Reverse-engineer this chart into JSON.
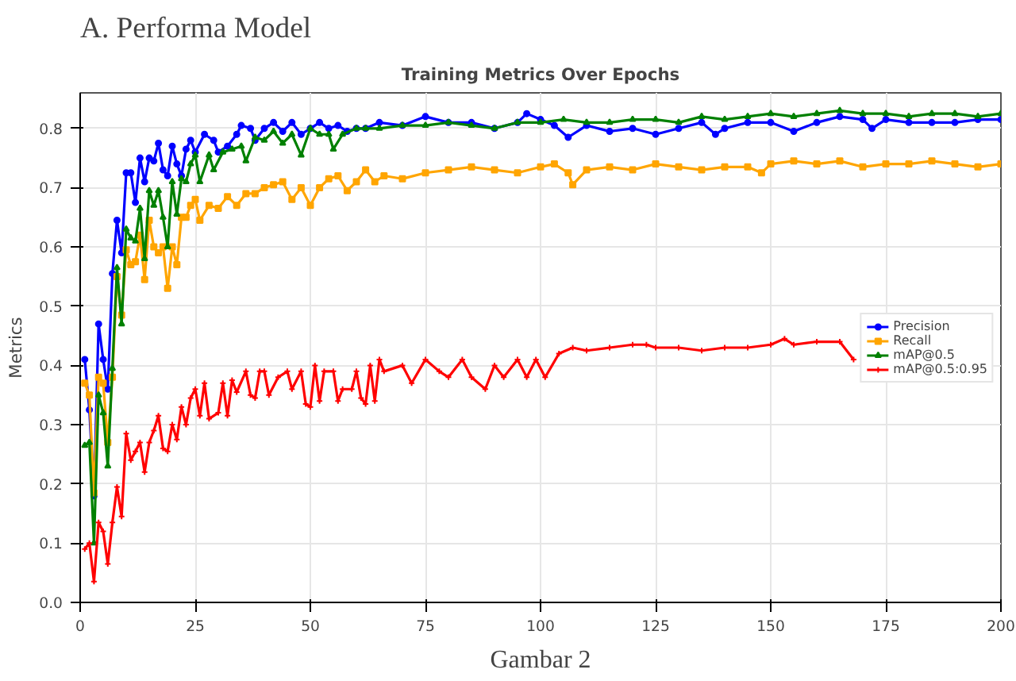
{
  "chart_data": {
    "type": "line",
    "title": "Training Metrics Over Epochs",
    "ylabel": "Metrics",
    "annotations": [
      "A. Performa Model",
      "Gambar 2"
    ],
    "xlim": [
      0,
      200
    ],
    "ylim": [
      0,
      0.86
    ],
    "xticks": [
      0,
      25,
      50,
      75,
      100,
      125,
      150,
      175,
      200
    ],
    "yticks": [
      {
        "value": 0,
        "label": "0.0"
      },
      0.1,
      0.2,
      0.3,
      0.4,
      0.5,
      0.6,
      0.7,
      0.8
    ],
    "grid": true,
    "legend": "right",
    "line_style": "solid",
    "series": [
      {
        "name": "Precision",
        "color": "#0000ff",
        "marker": "circle",
        "x": [
          1,
          2,
          3,
          4,
          5,
          6,
          7,
          8,
          9,
          10,
          11,
          12,
          13,
          14,
          15,
          16,
          17,
          18,
          19,
          20,
          21,
          22,
          23,
          24,
          25,
          27,
          29,
          30,
          32,
          34,
          35,
          37,
          38,
          40,
          42,
          44,
          46,
          48,
          50,
          52,
          54,
          56,
          58,
          60,
          62,
          65,
          70,
          75,
          80,
          85,
          90,
          95,
          97,
          100,
          103,
          106,
          110,
          115,
          120,
          125,
          130,
          135,
          138,
          140,
          145,
          150,
          155,
          160,
          165,
          170,
          172,
          175,
          180,
          185,
          190,
          195,
          200
        ],
        "values": [
          0.41,
          0.325,
          0.18,
          0.47,
          0.41,
          0.36,
          0.555,
          0.645,
          0.59,
          0.725,
          0.725,
          0.675,
          0.75,
          0.71,
          0.75,
          0.745,
          0.775,
          0.73,
          0.72,
          0.77,
          0.74,
          0.72,
          0.765,
          0.78,
          0.76,
          0.79,
          0.78,
          0.76,
          0.77,
          0.79,
          0.805,
          0.8,
          0.78,
          0.8,
          0.81,
          0.795,
          0.81,
          0.79,
          0.8,
          0.81,
          0.8,
          0.805,
          0.795,
          0.8,
          0.8,
          0.81,
          0.805,
          0.82,
          0.81,
          0.81,
          0.8,
          0.81,
          0.825,
          0.815,
          0.805,
          0.785,
          0.805,
          0.795,
          0.8,
          0.79,
          0.8,
          0.81,
          0.79,
          0.8,
          0.81,
          0.81,
          0.795,
          0.81,
          0.82,
          0.815,
          0.8,
          0.815,
          0.81,
          0.81,
          0.81,
          0.815,
          0.815
        ]
      },
      {
        "name": "Recall",
        "color": "#ffa500",
        "marker": "square",
        "x": [
          1,
          2,
          3,
          4,
          5,
          6,
          7,
          8,
          9,
          10,
          11,
          12,
          13,
          14,
          15,
          16,
          17,
          18,
          19,
          20,
          21,
          22,
          23,
          24,
          25,
          26,
          28,
          30,
          32,
          34,
          36,
          38,
          40,
          42,
          44,
          46,
          48,
          50,
          52,
          54,
          56,
          58,
          60,
          62,
          64,
          66,
          70,
          75,
          80,
          85,
          90,
          95,
          100,
          103,
          106,
          107,
          110,
          115,
          120,
          125,
          130,
          135,
          140,
          145,
          148,
          150,
          155,
          160,
          165,
          170,
          175,
          180,
          185,
          190,
          195,
          200
        ],
        "values": [
          0.37,
          0.35,
          0.185,
          0.38,
          0.37,
          0.27,
          0.38,
          0.55,
          0.485,
          0.595,
          0.57,
          0.575,
          0.62,
          0.545,
          0.645,
          0.6,
          0.59,
          0.6,
          0.53,
          0.6,
          0.57,
          0.65,
          0.65,
          0.67,
          0.68,
          0.645,
          0.67,
          0.665,
          0.685,
          0.67,
          0.69,
          0.69,
          0.7,
          0.705,
          0.71,
          0.68,
          0.7,
          0.67,
          0.7,
          0.715,
          0.72,
          0.695,
          0.71,
          0.73,
          0.71,
          0.72,
          0.715,
          0.725,
          0.73,
          0.735,
          0.73,
          0.725,
          0.735,
          0.74,
          0.725,
          0.705,
          0.73,
          0.735,
          0.73,
          0.74,
          0.735,
          0.73,
          0.735,
          0.735,
          0.725,
          0.74,
          0.745,
          0.74,
          0.745,
          0.735,
          0.74,
          0.74,
          0.745,
          0.74,
          0.735,
          0.74
        ]
      },
      {
        "name": "mAP@0.5",
        "color": "#008000",
        "marker": "triangle",
        "x": [
          1,
          2,
          3,
          4,
          5,
          6,
          7,
          8,
          9,
          10,
          11,
          12,
          13,
          14,
          15,
          16,
          17,
          18,
          19,
          20,
          21,
          22,
          23,
          24,
          25,
          26,
          28,
          29,
          31,
          33,
          35,
          36,
          38,
          40,
          42,
          44,
          46,
          48,
          50,
          52,
          54,
          55,
          57,
          60,
          62,
          65,
          70,
          75,
          80,
          85,
          90,
          95,
          100,
          105,
          110,
          115,
          120,
          125,
          130,
          135,
          140,
          145,
          150,
          155,
          160,
          165,
          170,
          175,
          180,
          185,
          190,
          195,
          200
        ],
        "values": [
          0.265,
          0.27,
          0.1,
          0.35,
          0.32,
          0.23,
          0.395,
          0.565,
          0.47,
          0.63,
          0.615,
          0.61,
          0.665,
          0.58,
          0.695,
          0.67,
          0.695,
          0.65,
          0.6,
          0.71,
          0.655,
          0.715,
          0.71,
          0.74,
          0.755,
          0.71,
          0.755,
          0.73,
          0.76,
          0.765,
          0.77,
          0.745,
          0.785,
          0.78,
          0.795,
          0.775,
          0.79,
          0.755,
          0.8,
          0.79,
          0.79,
          0.765,
          0.79,
          0.8,
          0.8,
          0.8,
          0.805,
          0.805,
          0.81,
          0.805,
          0.8,
          0.81,
          0.81,
          0.815,
          0.81,
          0.81,
          0.815,
          0.815,
          0.81,
          0.82,
          0.815,
          0.82,
          0.825,
          0.82,
          0.825,
          0.83,
          0.825,
          0.825,
          0.82,
          0.825,
          0.825,
          0.82,
          0.825
        ]
      },
      {
        "name": "mAP@0.5:0.95",
        "color": "#ff0000",
        "marker": "cross",
        "x": [
          1,
          2,
          3,
          4,
          5,
          6,
          7,
          8,
          9,
          10,
          11,
          12,
          13,
          14,
          15,
          16,
          17,
          18,
          19,
          20,
          21,
          22,
          23,
          24,
          25,
          26,
          27,
          28,
          30,
          31,
          32,
          33,
          34,
          36,
          37,
          38,
          39,
          40,
          41,
          43,
          45,
          46,
          48,
          49,
          50,
          51,
          52,
          53,
          55,
          56,
          57,
          59,
          60,
          61,
          62,
          63,
          64,
          65,
          66,
          70,
          72,
          75,
          78,
          80,
          83,
          85,
          88,
          90,
          92,
          95,
          97,
          99,
          101,
          104,
          107,
          110,
          115,
          120,
          123,
          125,
          130,
          135,
          140,
          145,
          150,
          153,
          155,
          160,
          165,
          168
        ],
        "values": [
          0.09,
          0.1,
          0.035,
          0.135,
          0.12,
          0.065,
          0.135,
          0.195,
          0.145,
          0.285,
          0.24,
          0.255,
          0.27,
          0.22,
          0.27,
          0.29,
          0.315,
          0.26,
          0.255,
          0.3,
          0.275,
          0.33,
          0.3,
          0.345,
          0.36,
          0.315,
          0.37,
          0.31,
          0.32,
          0.37,
          0.315,
          0.375,
          0.355,
          0.39,
          0.35,
          0.345,
          0.39,
          0.39,
          0.35,
          0.38,
          0.39,
          0.36,
          0.39,
          0.335,
          0.33,
          0.4,
          0.34,
          0.39,
          0.39,
          0.34,
          0.36,
          0.36,
          0.39,
          0.345,
          0.335,
          0.4,
          0.34,
          0.41,
          0.39,
          0.4,
          0.37,
          0.41,
          0.39,
          0.38,
          0.41,
          0.38,
          0.36,
          0.4,
          0.38,
          0.41,
          0.38,
          0.41,
          0.38,
          0.42,
          0.43,
          0.425,
          0.43,
          0.435,
          0.435,
          0.43,
          0.43,
          0.425,
          0.43,
          0.43,
          0.435,
          0.445,
          0.435,
          0.44,
          0.44,
          0.41
        ]
      }
    ]
  }
}
